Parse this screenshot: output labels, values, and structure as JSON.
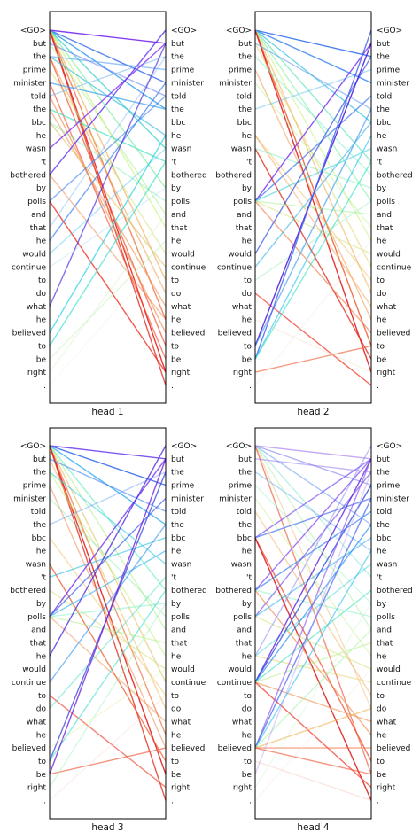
{
  "tokens": [
    "<GO>",
    "but",
    "the",
    "prime",
    "minister",
    "told",
    "the",
    "bbc",
    "he",
    "wasn",
    "'t",
    "bothered",
    "by",
    "polls",
    "and",
    "that",
    "he",
    "would",
    "continue",
    "to",
    "do",
    "what",
    "he",
    "believed",
    "to",
    "be",
    "right",
    "."
  ],
  "panels": [
    {
      "title": "head 1",
      "links": [
        [
          0,
          1,
          "#7a2cf0",
          0.9
        ],
        [
          0,
          4,
          "#4a7af0",
          0.9
        ],
        [
          0,
          6,
          "#2a9af0",
          0.8
        ],
        [
          0,
          9,
          "#3fd4d0",
          0.8
        ],
        [
          0,
          12,
          "#7ff0a0",
          0.7
        ],
        [
          0,
          15,
          "#c2f070",
          0.6
        ],
        [
          0,
          19,
          "#f0b060",
          0.7
        ],
        [
          0,
          22,
          "#f07040",
          0.8
        ],
        [
          0,
          26,
          "#e82020",
          0.9
        ],
        [
          0,
          27,
          "#e03020",
          0.8
        ],
        [
          1,
          5,
          "#6a80f0",
          0.6
        ],
        [
          1,
          14,
          "#a0f080",
          0.5
        ],
        [
          2,
          3,
          "#5aa0f0",
          0.6
        ],
        [
          2,
          8,
          "#40c0e0",
          0.7
        ],
        [
          2,
          20,
          "#f0a050",
          0.6
        ],
        [
          2,
          24,
          "#f05030",
          0.7
        ],
        [
          3,
          17,
          "#d0e070",
          0.5
        ],
        [
          4,
          6,
          "#3aa0f0",
          0.7
        ],
        [
          4,
          25,
          "#f04020",
          0.6
        ],
        [
          5,
          2,
          "#6ab0f0",
          0.5
        ],
        [
          5,
          23,
          "#f08040",
          0.6
        ],
        [
          6,
          10,
          "#40e0c0",
          0.7
        ],
        [
          6,
          21,
          "#f09050",
          0.6
        ],
        [
          7,
          13,
          "#80f0b0",
          0.5
        ],
        [
          7,
          18,
          "#e0c060",
          0.6
        ],
        [
          9,
          1,
          "#8030f0",
          0.8
        ],
        [
          11,
          0,
          "#6030f0",
          0.8
        ],
        [
          11,
          22,
          "#f08040",
          0.5
        ],
        [
          13,
          5,
          "#4080f0",
          0.6
        ],
        [
          13,
          26,
          "#f03020",
          0.8
        ],
        [
          15,
          2,
          "#70b0f0",
          0.4
        ],
        [
          16,
          4,
          "#3a80f0",
          0.7
        ],
        [
          17,
          9,
          "#60d0f0",
          0.5
        ],
        [
          18,
          12,
          "#b0e0f0",
          0.4
        ],
        [
          21,
          1,
          "#5030e0",
          0.7
        ],
        [
          23,
          8,
          "#20d0e0",
          0.7
        ],
        [
          24,
          10,
          "#40e0d0",
          0.7
        ],
        [
          25,
          16,
          "#b0f0a0",
          0.4
        ],
        [
          26,
          14,
          "#c0f0b0",
          0.3
        ],
        [
          27,
          17,
          "#f0e0d0",
          0.2
        ]
      ]
    },
    {
      "title": "head 2",
      "links": [
        [
          0,
          2,
          "#1a60f0",
          0.8
        ],
        [
          0,
          4,
          "#2a80f0",
          0.8
        ],
        [
          0,
          7,
          "#30c0e0",
          0.7
        ],
        [
          0,
          10,
          "#50e0b0",
          0.6
        ],
        [
          0,
          13,
          "#80f0a0",
          0.6
        ],
        [
          0,
          16,
          "#c0f070",
          0.5
        ],
        [
          0,
          20,
          "#f0b050",
          0.6
        ],
        [
          0,
          24,
          "#f05020",
          0.8
        ],
        [
          0,
          26,
          "#e02020",
          0.9
        ],
        [
          1,
          6,
          "#5090f0",
          0.5
        ],
        [
          1,
          18,
          "#e0d060",
          0.5
        ],
        [
          2,
          11,
          "#70f0c0",
          0.5
        ],
        [
          3,
          22,
          "#f09040",
          0.5
        ],
        [
          4,
          15,
          "#b0f080",
          0.4
        ],
        [
          6,
          3,
          "#40b0f0",
          0.4
        ],
        [
          8,
          19,
          "#f0c060",
          0.5
        ],
        [
          8,
          21,
          "#f0a050",
          0.5
        ],
        [
          9,
          25,
          "#e03020",
          0.8
        ],
        [
          9,
          12,
          "#80f0c0",
          0.5
        ],
        [
          13,
          1,
          "#7030f0",
          0.8
        ],
        [
          13,
          5,
          "#3a70f0",
          0.7
        ],
        [
          13,
          9,
          "#40d0e0",
          0.6
        ],
        [
          13,
          14,
          "#a0f090",
          0.5
        ],
        [
          13,
          17,
          "#d0e070",
          0.5
        ],
        [
          13,
          23,
          "#f07040",
          0.6
        ],
        [
          17,
          2,
          "#3050e0",
          0.7
        ],
        [
          18,
          7,
          "#30b0e0",
          0.6
        ],
        [
          19,
          13,
          "#a0f0c0",
          0.5
        ],
        [
          20,
          27,
          "#f03020",
          0.7
        ],
        [
          24,
          1,
          "#5020e0",
          0.9
        ],
        [
          24,
          6,
          "#2a90f0",
          0.6
        ],
        [
          25,
          0,
          "#4060f0",
          0.8
        ],
        [
          25,
          8,
          "#20c0f0",
          0.6
        ],
        [
          25,
          10,
          "#30e0c0",
          0.6
        ],
        [
          26,
          24,
          "#f07050",
          0.7
        ],
        [
          27,
          16,
          "#f0e0d0",
          0.3
        ],
        [
          22,
          26,
          "#f0d0b0",
          0.3
        ]
      ]
    },
    {
      "title": "head 3",
      "links": [
        [
          0,
          1,
          "#6030f0",
          0.8
        ],
        [
          0,
          3,
          "#3a70f0",
          0.9
        ],
        [
          0,
          6,
          "#30b0f0",
          0.8
        ],
        [
          0,
          11,
          "#70f0c0",
          0.7
        ],
        [
          0,
          14,
          "#b0f090",
          0.6
        ],
        [
          0,
          18,
          "#e0c060",
          0.6
        ],
        [
          0,
          22,
          "#f07040",
          0.7
        ],
        [
          0,
          25,
          "#e02020",
          0.9
        ],
        [
          0,
          27,
          "#e03020",
          0.8
        ],
        [
          1,
          5,
          "#4080f0",
          0.6
        ],
        [
          1,
          20,
          "#f0b050",
          0.5
        ],
        [
          2,
          9,
          "#40d0e0",
          0.6
        ],
        [
          2,
          16,
          "#c0f070",
          0.5
        ],
        [
          3,
          23,
          "#f08040",
          0.5
        ],
        [
          4,
          13,
          "#90f0b0",
          0.5
        ],
        [
          6,
          2,
          "#5090f0",
          0.4
        ],
        [
          7,
          19,
          "#f0c060",
          0.5
        ],
        [
          9,
          24,
          "#f05020",
          0.7
        ],
        [
          10,
          7,
          "#30c0e0",
          0.6
        ],
        [
          11,
          17,
          "#d0e070",
          0.5
        ],
        [
          13,
          1,
          "#7030f0",
          0.8
        ],
        [
          13,
          4,
          "#3a60f0",
          0.7
        ],
        [
          13,
          8,
          "#30b0f0",
          0.6
        ],
        [
          13,
          12,
          "#80f0c0",
          0.5
        ],
        [
          13,
          15,
          "#b0f080",
          0.5
        ],
        [
          13,
          21,
          "#f09050",
          0.5
        ],
        [
          16,
          0,
          "#5030e0",
          0.8
        ],
        [
          18,
          6,
          "#2a90f0",
          0.6
        ],
        [
          19,
          26,
          "#f03020",
          0.6
        ],
        [
          20,
          10,
          "#50e0c0",
          0.5
        ],
        [
          24,
          2,
          "#4050e0",
          0.8
        ],
        [
          24,
          11,
          "#40e0d0",
          0.6
        ],
        [
          25,
          1,
          "#7020e0",
          0.8
        ],
        [
          25,
          23,
          "#f06040",
          0.7
        ],
        [
          26,
          12,
          "#90f0b0",
          0.4
        ],
        [
          23,
          17,
          "#e0f0a0",
          0.4
        ],
        [
          27,
          19,
          "#f0d0c0",
          0.3
        ]
      ]
    },
    {
      "title": "head 4",
      "links": [
        [
          0,
          1,
          "#a070f0",
          0.6
        ],
        [
          0,
          3,
          "#8080f0",
          0.6
        ],
        [
          0,
          6,
          "#70a0f0",
          0.6
        ],
        [
          0,
          10,
          "#80e0d0",
          0.5
        ],
        [
          0,
          14,
          "#b0f0a0",
          0.5
        ],
        [
          0,
          20,
          "#f0c080",
          0.5
        ],
        [
          0,
          25,
          "#f06040",
          0.7
        ],
        [
          1,
          2,
          "#9070f0",
          0.5
        ],
        [
          2,
          8,
          "#60b0f0",
          0.5
        ],
        [
          3,
          12,
          "#90f0c0",
          0.4
        ],
        [
          4,
          16,
          "#c0f080",
          0.4
        ],
        [
          5,
          19,
          "#f0b060",
          0.5
        ],
        [
          7,
          1,
          "#7050f0",
          0.7
        ],
        [
          7,
          4,
          "#4a70f0",
          0.7
        ],
        [
          7,
          24,
          "#f04020",
          0.7
        ],
        [
          7,
          27,
          "#e02020",
          0.9
        ],
        [
          11,
          1,
          "#8040f0",
          0.7
        ],
        [
          11,
          5,
          "#3a80f0",
          0.7
        ],
        [
          11,
          13,
          "#80f0c0",
          0.5
        ],
        [
          11,
          22,
          "#f08040",
          0.6
        ],
        [
          13,
          2,
          "#6040e0",
          0.6
        ],
        [
          13,
          7,
          "#30b0f0",
          0.6
        ],
        [
          13,
          17,
          "#d0e070",
          0.5
        ],
        [
          16,
          0,
          "#8080f0",
          0.5
        ],
        [
          16,
          9,
          "#40d0e0",
          0.5
        ],
        [
          16,
          18,
          "#e0d060",
          0.5
        ],
        [
          18,
          1,
          "#6020e0",
          0.8
        ],
        [
          18,
          3,
          "#3050e0",
          0.8
        ],
        [
          18,
          6,
          "#2a90f0",
          0.7
        ],
        [
          18,
          11,
          "#40e0c0",
          0.6
        ],
        [
          18,
          15,
          "#b0f080",
          0.5
        ],
        [
          18,
          21,
          "#f09050",
          0.6
        ],
        [
          18,
          26,
          "#f03020",
          0.7
        ],
        [
          23,
          1,
          "#9060f0",
          0.7
        ],
        [
          23,
          4,
          "#4060f0",
          0.7
        ],
        [
          23,
          8,
          "#30c0f0",
          0.6
        ],
        [
          23,
          14,
          "#a0f0a0",
          0.5
        ],
        [
          23,
          20,
          "#f0b050",
          0.6
        ],
        [
          23,
          23,
          "#f07040",
          0.6
        ],
        [
          23,
          25,
          "#f05030",
          0.6
        ],
        [
          25,
          2,
          "#b090f0",
          0.4
        ],
        [
          26,
          12,
          "#c0f0d0",
          0.3
        ],
        [
          27,
          17,
          "#f0e0d0",
          0.3
        ],
        [
          24,
          27,
          "#f0b0a0",
          0.3
        ]
      ]
    }
  ]
}
